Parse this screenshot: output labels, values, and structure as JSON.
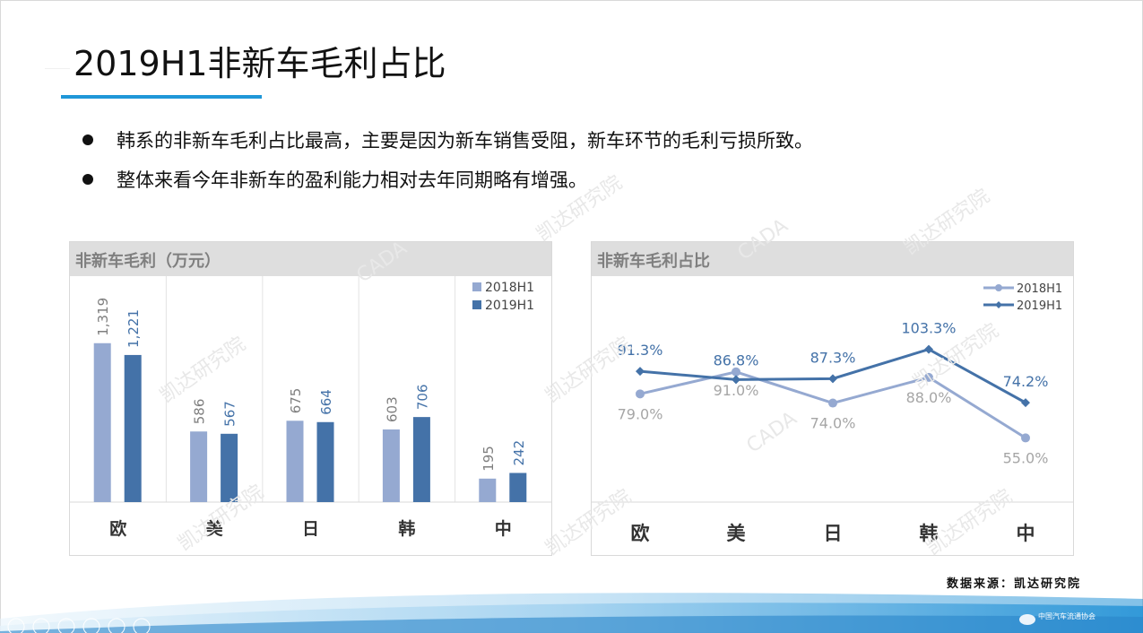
{
  "title": "2019H1非新车毛利占比",
  "bullets": [
    "韩系的非新车毛利占比最高，主要是因为新车销售受阻，新车环节的毛利亏损所致。",
    "整体来看今年非新车的盈利能力相对去年同期略有增强。"
  ],
  "source": "数据来源：凯达研究院",
  "watermark": [
    "凯达研究院",
    "CADA"
  ],
  "logo_text": "中国汽车流通协会",
  "colors": {
    "s2018": "#95a9d1",
    "s2019": "#4472a8",
    "accent": "#1f97d8",
    "header": "#dedede"
  },
  "chart_data": [
    {
      "type": "bar",
      "title": "非新车毛利（万元）",
      "categories": [
        "欧",
        "美",
        "日",
        "韩",
        "中"
      ],
      "series": [
        {
          "name": "2018H1",
          "values": [
            1319,
            586,
            675,
            603,
            195
          ],
          "labels": [
            "1,319",
            "586",
            "675",
            "603",
            "195"
          ]
        },
        {
          "name": "2019H1",
          "values": [
            1221,
            567,
            664,
            706,
            242
          ],
          "labels": [
            "1,221",
            "567",
            "664",
            "706",
            "242"
          ]
        }
      ],
      "ylim": [
        0,
        1600
      ],
      "legend": "top-right",
      "grid": false
    },
    {
      "type": "line",
      "title": "非新车毛利占比",
      "categories": [
        "欧",
        "美",
        "日",
        "韩",
        "中"
      ],
      "series": [
        {
          "name": "2018H1",
          "values": [
            79.0,
            91.0,
            74.0,
            88.0,
            55.0
          ],
          "labels": [
            "79.0%",
            "91.0%",
            "74.0%",
            "88.0%",
            "55.0%"
          ]
        },
        {
          "name": "2019H1",
          "values": [
            91.3,
            86.8,
            87.3,
            103.3,
            74.2
          ],
          "labels": [
            "91.3%",
            "86.8%",
            "87.3%",
            "103.3%",
            "74.2%"
          ]
        }
      ],
      "ylim": [
        20,
        130
      ],
      "legend": "top-right",
      "grid": false
    }
  ]
}
